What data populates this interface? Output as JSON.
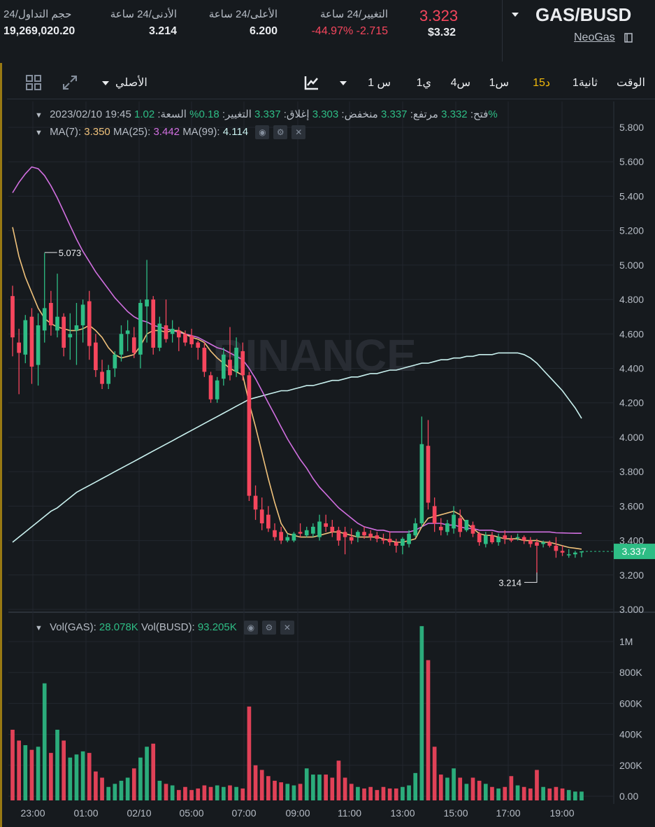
{
  "header": {
    "symbol": "GAS/BUSD",
    "coin_name": "NeoGas",
    "last_price": "3.323",
    "last_price_usd": "$3.32",
    "change_label": "التغيير/24 ساعة",
    "change_value": "-44.97% -2.715",
    "high_label": "الأعلى/24 ساعة",
    "high_value": "6.200",
    "low_label": "الأدنى/24 ساعة",
    "low_value": "3.214",
    "volume_label": "حجم التداول/24",
    "volume_value": "19,269,020.20"
  },
  "toolbar": {
    "time_label": "الوقت",
    "intervals": [
      "1ثانية",
      "15د",
      "1س",
      "4س",
      "1ي",
      "1 س"
    ],
    "active_interval": "15د",
    "view_label": "الأصلي"
  },
  "legend": {
    "date": "2023/02/10 19:45",
    "open_label": "فتح:",
    "open": "3.332",
    "high_label": "مرتفع:",
    "high": "3.337",
    "low_label": "منخفض:",
    "low": "3.303",
    "close_label": "إغلاق:",
    "close": "3.337",
    "change_label": "التغيير:",
    "change": "0.18%",
    "amplitude_label": "السعة:",
    "amplitude": "1.02%",
    "ma7_label": "MA(7):",
    "ma7": "3.350",
    "ma25_label": "MA(25):",
    "ma25": "3.442",
    "ma99_label": "MA(99):",
    "ma99": "4.114",
    "vol_gas_label": "Vol(GAS):",
    "vol_gas": "28.078K",
    "vol_busd_label": "Vol(BUSD):",
    "vol_busd": "93.205K"
  },
  "price_tag": "3.337",
  "max_label": "5.073",
  "min_label": "3.214",
  "watermark": "BINANCE",
  "colors": {
    "up": "#2ebd85",
    "down": "#f6465d",
    "ma7": "#f0c27b",
    "ma25": "#d16fe0",
    "ma99": "#c9f1ef",
    "accent": "#f0b90b"
  },
  "chart_data": {
    "type": "candlestick",
    "price_axis": {
      "ticks": [
        "5.800",
        "5.600",
        "5.400",
        "5.200",
        "5.000",
        "4.800",
        "4.600",
        "4.400",
        "4.200",
        "4.000",
        "3.800",
        "3.600",
        "3.400",
        "3.200",
        "3.000"
      ],
      "range": [
        2.99,
        5.8
      ]
    },
    "volume_axis": {
      "ticks": [
        "1M",
        "800K",
        "600K",
        "400K",
        "200K",
        "0.00"
      ],
      "tick_values": [
        1000000,
        800000,
        600000,
        400000,
        200000,
        0
      ]
    },
    "time_ticks": [
      "23:00",
      "01:00",
      "02/10",
      "05:00",
      "07:00",
      "09:00",
      "11:00",
      "13:00",
      "15:00",
      "17:00",
      "19:00"
    ],
    "candles": [
      {
        "o": 4.82,
        "h": 4.88,
        "l": 4.47,
        "c": 4.58
      },
      {
        "o": 4.55,
        "h": 4.63,
        "l": 4.25,
        "c": 4.49
      },
      {
        "o": 4.48,
        "h": 4.71,
        "l": 4.43,
        "c": 4.68
      },
      {
        "o": 4.7,
        "h": 4.75,
        "l": 4.31,
        "c": 4.41
      },
      {
        "o": 4.42,
        "h": 4.72,
        "l": 4.3,
        "c": 4.65
      },
      {
        "o": 4.62,
        "h": 5.07,
        "l": 4.55,
        "c": 4.75
      },
      {
        "o": 4.78,
        "h": 4.85,
        "l": 4.59,
        "c": 4.65
      },
      {
        "o": 4.62,
        "h": 4.95,
        "l": 4.58,
        "c": 4.7
      },
      {
        "o": 4.7,
        "h": 4.72,
        "l": 4.47,
        "c": 4.52
      },
      {
        "o": 4.58,
        "h": 4.72,
        "l": 4.45,
        "c": 4.6
      },
      {
        "o": 4.62,
        "h": 4.78,
        "l": 4.42,
        "c": 4.65
      },
      {
        "o": 4.65,
        "h": 4.8,
        "l": 4.55,
        "c": 4.77
      },
      {
        "o": 4.79,
        "h": 4.85,
        "l": 4.45,
        "c": 4.53
      },
      {
        "o": 4.55,
        "h": 4.6,
        "l": 4.35,
        "c": 4.39
      },
      {
        "o": 4.38,
        "h": 4.45,
        "l": 4.28,
        "c": 4.31
      },
      {
        "o": 4.31,
        "h": 4.42,
        "l": 4.28,
        "c": 4.39
      },
      {
        "o": 4.4,
        "h": 4.5,
        "l": 4.35,
        "c": 4.48
      },
      {
        "o": 4.48,
        "h": 4.65,
        "l": 4.44,
        "c": 4.6
      },
      {
        "o": 4.6,
        "h": 4.68,
        "l": 4.5,
        "c": 4.62
      },
      {
        "o": 4.58,
        "h": 4.64,
        "l": 4.46,
        "c": 4.49
      },
      {
        "o": 4.48,
        "h": 4.8,
        "l": 4.4,
        "c": 4.78
      },
      {
        "o": 4.76,
        "h": 5.03,
        "l": 4.55,
        "c": 4.8
      },
      {
        "o": 4.8,
        "h": 4.82,
        "l": 4.48,
        "c": 4.52
      },
      {
        "o": 4.52,
        "h": 4.7,
        "l": 4.5,
        "c": 4.66
      },
      {
        "o": 4.65,
        "h": 4.8,
        "l": 4.55,
        "c": 4.57
      },
      {
        "o": 4.6,
        "h": 4.68,
        "l": 4.55,
        "c": 4.63
      },
      {
        "o": 4.62,
        "h": 4.64,
        "l": 4.5,
        "c": 4.58
      },
      {
        "o": 4.6,
        "h": 4.62,
        "l": 4.53,
        "c": 4.55
      },
      {
        "o": 4.59,
        "h": 4.63,
        "l": 4.52,
        "c": 4.54
      },
      {
        "o": 4.55,
        "h": 4.56,
        "l": 4.45,
        "c": 4.52
      },
      {
        "o": 4.52,
        "h": 4.55,
        "l": 4.35,
        "c": 4.38
      },
      {
        "o": 4.36,
        "h": 4.38,
        "l": 4.2,
        "c": 4.22
      },
      {
        "o": 4.22,
        "h": 4.35,
        "l": 4.2,
        "c": 4.33
      },
      {
        "o": 4.34,
        "h": 4.52,
        "l": 4.3,
        "c": 4.48
      },
      {
        "o": 4.45,
        "h": 4.64,
        "l": 4.33,
        "c": 4.36
      },
      {
        "o": 4.38,
        "h": 4.58,
        "l": 4.35,
        "c": 4.52
      },
      {
        "o": 4.5,
        "h": 4.55,
        "l": 4.33,
        "c": 4.36
      },
      {
        "o": 4.36,
        "h": 4.38,
        "l": 3.63,
        "c": 3.66
      },
      {
        "o": 3.66,
        "h": 3.72,
        "l": 3.52,
        "c": 3.58
      },
      {
        "o": 3.58,
        "h": 3.65,
        "l": 3.46,
        "c": 3.5
      },
      {
        "o": 3.55,
        "h": 3.6,
        "l": 3.45,
        "c": 3.47
      },
      {
        "o": 3.46,
        "h": 3.5,
        "l": 3.4,
        "c": 3.42
      },
      {
        "o": 3.45,
        "h": 3.48,
        "l": 3.38,
        "c": 3.4
      },
      {
        "o": 3.4,
        "h": 3.44,
        "l": 3.39,
        "c": 3.42
      },
      {
        "o": 3.4,
        "h": 3.45,
        "l": 3.39,
        "c": 3.44
      },
      {
        "o": 3.45,
        "h": 3.5,
        "l": 3.42,
        "c": 3.44
      },
      {
        "o": 3.43,
        "h": 3.48,
        "l": 3.42,
        "c": 3.46
      },
      {
        "o": 3.44,
        "h": 3.5,
        "l": 3.42,
        "c": 3.48
      },
      {
        "o": 3.42,
        "h": 3.55,
        "l": 3.4,
        "c": 3.51
      },
      {
        "o": 3.5,
        "h": 3.55,
        "l": 3.45,
        "c": 3.48
      },
      {
        "o": 3.48,
        "h": 3.52,
        "l": 3.42,
        "c": 3.45
      },
      {
        "o": 3.46,
        "h": 3.48,
        "l": 3.37,
        "c": 3.4
      },
      {
        "o": 3.45,
        "h": 3.48,
        "l": 3.32,
        "c": 3.42
      },
      {
        "o": 3.42,
        "h": 3.47,
        "l": 3.38,
        "c": 3.4
      },
      {
        "o": 3.42,
        "h": 3.46,
        "l": 3.39,
        "c": 3.45
      },
      {
        "o": 3.45,
        "h": 3.48,
        "l": 3.41,
        "c": 3.43
      },
      {
        "o": 3.44,
        "h": 3.46,
        "l": 3.4,
        "c": 3.42
      },
      {
        "o": 3.43,
        "h": 3.45,
        "l": 3.39,
        "c": 3.41
      },
      {
        "o": 3.41,
        "h": 3.44,
        "l": 3.38,
        "c": 3.4
      },
      {
        "o": 3.41,
        "h": 3.45,
        "l": 3.37,
        "c": 3.39
      },
      {
        "o": 3.39,
        "h": 3.41,
        "l": 3.33,
        "c": 3.37
      },
      {
        "o": 3.37,
        "h": 3.42,
        "l": 3.32,
        "c": 3.41
      },
      {
        "o": 3.38,
        "h": 3.46,
        "l": 3.36,
        "c": 3.44
      },
      {
        "o": 3.43,
        "h": 3.53,
        "l": 3.42,
        "c": 3.5
      },
      {
        "o": 3.5,
        "h": 4.12,
        "l": 3.48,
        "c": 3.96
      },
      {
        "o": 3.95,
        "h": 4.1,
        "l": 3.58,
        "c": 3.62
      },
      {
        "o": 3.6,
        "h": 3.65,
        "l": 3.45,
        "c": 3.5
      },
      {
        "o": 3.48,
        "h": 3.53,
        "l": 3.43,
        "c": 3.46
      },
      {
        "o": 3.45,
        "h": 3.52,
        "l": 3.43,
        "c": 3.5
      },
      {
        "o": 3.47,
        "h": 3.6,
        "l": 3.44,
        "c": 3.55
      },
      {
        "o": 3.53,
        "h": 3.58,
        "l": 3.42,
        "c": 3.45
      },
      {
        "o": 3.46,
        "h": 3.52,
        "l": 3.45,
        "c": 3.52
      },
      {
        "o": 3.49,
        "h": 3.51,
        "l": 3.42,
        "c": 3.44
      },
      {
        "o": 3.44,
        "h": 3.45,
        "l": 3.37,
        "c": 3.39
      },
      {
        "o": 3.38,
        "h": 3.45,
        "l": 3.36,
        "c": 3.43
      },
      {
        "o": 3.43,
        "h": 3.45,
        "l": 3.38,
        "c": 3.39
      },
      {
        "o": 3.39,
        "h": 3.44,
        "l": 3.37,
        "c": 3.42
      },
      {
        "o": 3.43,
        "h": 3.46,
        "l": 3.38,
        "c": 3.41
      },
      {
        "o": 3.41,
        "h": 3.43,
        "l": 3.39,
        "c": 3.4
      },
      {
        "o": 3.42,
        "h": 3.44,
        "l": 3.4,
        "c": 3.42
      },
      {
        "o": 3.42,
        "h": 3.43,
        "l": 3.38,
        "c": 3.4
      },
      {
        "o": 3.4,
        "h": 3.42,
        "l": 3.36,
        "c": 3.38
      },
      {
        "o": 3.39,
        "h": 3.41,
        "l": 3.21,
        "c": 3.37
      },
      {
        "o": 3.38,
        "h": 3.4,
        "l": 3.36,
        "c": 3.39
      },
      {
        "o": 3.39,
        "h": 3.4,
        "l": 3.36,
        "c": 3.37
      },
      {
        "o": 3.37,
        "h": 3.42,
        "l": 3.3,
        "c": 3.34
      },
      {
        "o": 3.34,
        "h": 3.37,
        "l": 3.31,
        "c": 3.33
      },
      {
        "o": 3.32,
        "h": 3.35,
        "l": 3.3,
        "c": 3.32
      },
      {
        "o": 3.32,
        "h": 3.34,
        "l": 3.3,
        "c": 3.33
      },
      {
        "o": 3.332,
        "h": 3.337,
        "l": 3.303,
        "c": 3.337
      }
    ],
    "volume": [
      430000,
      360000,
      330000,
      300000,
      320000,
      730000,
      280000,
      430000,
      360000,
      250000,
      270000,
      290000,
      280000,
      160000,
      120000,
      60000,
      80000,
      100000,
      120000,
      180000,
      250000,
      320000,
      340000,
      100000,
      80000,
      70000,
      40000,
      60000,
      40000,
      50000,
      70000,
      60000,
      70000,
      60000,
      70000,
      60000,
      50000,
      580000,
      200000,
      170000,
      130000,
      100000,
      90000,
      80000,
      70000,
      80000,
      180000,
      140000,
      140000,
      140000,
      120000,
      230000,
      120000,
      80000,
      60000,
      50000,
      60000,
      40000,
      60000,
      50000,
      50000,
      60000,
      70000,
      150000,
      1100000,
      880000,
      320000,
      140000,
      120000,
      180000,
      120000,
      80000,
      120000,
      100000,
      80000,
      60000,
      50000,
      60000,
      130000,
      70000,
      60000,
      50000,
      170000,
      60000,
      50000,
      60000,
      50000,
      40000,
      30000,
      30000
    ],
    "ma7": [
      5.22,
      5.05,
      4.93,
      4.84,
      4.75,
      4.69,
      4.66,
      4.64,
      4.63,
      4.62,
      4.62,
      4.63,
      4.65,
      4.62,
      4.58,
      4.52,
      4.48,
      4.46,
      4.47,
      4.48,
      4.53,
      4.6,
      4.62,
      4.62,
      4.61,
      4.62,
      4.62,
      4.6,
      4.58,
      4.57,
      4.55,
      4.5,
      4.46,
      4.43,
      4.4,
      4.38,
      4.36,
      4.2,
      4.06,
      3.91,
      3.76,
      3.62,
      3.5,
      3.44,
      3.43,
      3.42,
      3.42,
      3.42,
      3.43,
      3.44,
      3.45,
      3.45,
      3.44,
      3.43,
      3.42,
      3.42,
      3.42,
      3.42,
      3.41,
      3.4,
      3.39,
      3.39,
      3.4,
      3.41,
      3.48,
      3.53,
      3.54,
      3.55,
      3.56,
      3.57,
      3.55,
      3.5,
      3.47,
      3.44,
      3.43,
      3.43,
      3.42,
      3.41,
      3.41,
      3.41,
      3.4,
      3.4,
      3.4,
      3.39,
      3.39,
      3.38,
      3.37,
      3.36,
      3.355,
      3.35
    ],
    "ma25": [
      5.42,
      5.48,
      5.53,
      5.57,
      5.56,
      5.52,
      5.46,
      5.39,
      5.31,
      5.23,
      5.15,
      5.08,
      5.02,
      4.96,
      4.91,
      4.86,
      4.81,
      4.77,
      4.73,
      4.7,
      4.68,
      4.67,
      4.65,
      4.64,
      4.63,
      4.62,
      4.61,
      4.6,
      4.59,
      4.58,
      4.56,
      4.54,
      4.52,
      4.51,
      4.49,
      4.47,
      4.45,
      4.4,
      4.34,
      4.27,
      4.2,
      4.13,
      4.06,
      3.99,
      3.93,
      3.87,
      3.82,
      3.76,
      3.71,
      3.67,
      3.63,
      3.59,
      3.56,
      3.53,
      3.5,
      3.48,
      3.47,
      3.46,
      3.46,
      3.45,
      3.45,
      3.45,
      3.45,
      3.46,
      3.48,
      3.5,
      3.5,
      3.5,
      3.49,
      3.49,
      3.48,
      3.47,
      3.47,
      3.46,
      3.46,
      3.46,
      3.45,
      3.45,
      3.45,
      3.45,
      3.45,
      3.45,
      3.45,
      3.45,
      3.45,
      3.445,
      3.444,
      3.443,
      3.442,
      3.442
    ],
    "ma99": [
      3.39,
      3.42,
      3.45,
      3.48,
      3.51,
      3.54,
      3.57,
      3.59,
      3.62,
      3.65,
      3.68,
      3.7,
      3.72,
      3.74,
      3.76,
      3.78,
      3.8,
      3.82,
      3.84,
      3.86,
      3.88,
      3.9,
      3.92,
      3.94,
      3.96,
      3.98,
      4.0,
      4.02,
      4.04,
      4.06,
      4.08,
      4.1,
      4.12,
      4.14,
      4.16,
      4.18,
      4.2,
      4.22,
      4.23,
      4.24,
      4.25,
      4.26,
      4.27,
      4.27,
      4.28,
      4.29,
      4.3,
      4.3,
      4.31,
      4.32,
      4.33,
      4.33,
      4.34,
      4.35,
      4.35,
      4.36,
      4.37,
      4.37,
      4.38,
      4.39,
      4.39,
      4.4,
      4.41,
      4.42,
      4.43,
      4.43,
      4.44,
      4.45,
      4.45,
      4.46,
      4.46,
      4.47,
      4.47,
      4.48,
      4.48,
      4.48,
      4.49,
      4.49,
      4.49,
      4.49,
      4.48,
      4.46,
      4.43,
      4.39,
      4.35,
      4.31,
      4.27,
      4.22,
      4.17,
      4.11
    ]
  }
}
